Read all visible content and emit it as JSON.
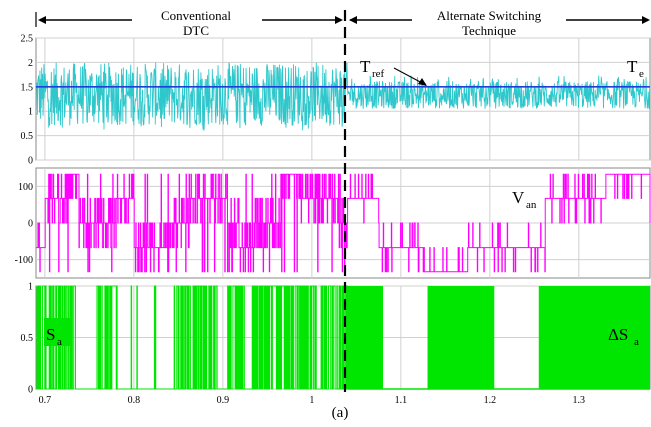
{
  "header": {
    "left_label_line1": "Conventional",
    "left_label_line2": "DTC",
    "right_label_line1": "Alternate Switching",
    "right_label_line2": "Technique"
  },
  "caption": "(a)",
  "annotations": {
    "tref_main": "T",
    "tref_sub": "ref",
    "te_main": "T",
    "te_sub": "e",
    "van_main": "V",
    "van_sub": "an",
    "sa_main": "S",
    "sa_sub": "a",
    "dsa_main": "ΔS",
    "dsa_sub": "a"
  },
  "colors": {
    "torque": "#2ec8cc",
    "reference": "#1f3fd6",
    "voltage": "#ff00ff",
    "switch": "#00e600",
    "grid": "#d0d0d0",
    "divider": "#000000"
  },
  "chart_data": [
    {
      "type": "line",
      "panel": "torque",
      "xlim": [
        0.69,
        1.38
      ],
      "ylim": [
        0,
        2.5
      ],
      "yticks": [
        "0",
        "0.5",
        "1",
        "1.5",
        "2",
        "2.5"
      ],
      "xticks": [],
      "switch_time": 1.04,
      "series": [
        {
          "name": "Tref",
          "values_constant": 1.5
        },
        {
          "name": "Te",
          "before_switch_range": [
            0.6,
            2.0
          ],
          "after_switch_range": [
            1.05,
            1.7
          ]
        }
      ]
    },
    {
      "type": "line",
      "panel": "phase_voltage",
      "xlim": [
        0.69,
        1.38
      ],
      "ylim": [
        -150,
        150
      ],
      "yticks": [
        "-100",
        "0",
        "100"
      ],
      "xticks": [],
      "switch_time": 1.04,
      "levels": [
        -133,
        -67,
        0,
        67,
        133
      ],
      "series": [
        {
          "name": "Van"
        }
      ]
    },
    {
      "type": "line",
      "panel": "switching_state",
      "xlim": [
        0.69,
        1.38
      ],
      "ylim": [
        0,
        1
      ],
      "yticks": [
        "0",
        "0.5",
        "1"
      ],
      "xticks": [
        "0.7",
        "0.8",
        "0.9",
        "1",
        "1.1",
        "1.2",
        "1.3"
      ],
      "switch_time": 1.04,
      "high_blocks_after_switch": [
        [
          1.04,
          1.08
        ],
        [
          1.13,
          1.205
        ],
        [
          1.255,
          1.38
        ]
      ],
      "series": [
        {
          "name": "Sa"
        },
        {
          "name": "ΔSa"
        }
      ]
    }
  ]
}
